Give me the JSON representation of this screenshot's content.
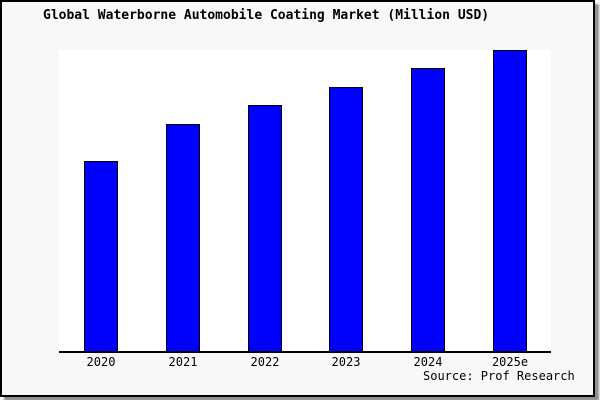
{
  "chart_data": {
    "type": "bar",
    "title": "Global Waterborne Automobile Coating Market (Million USD)",
    "categories": [
      "2020",
      "2021",
      "2022",
      "2023",
      "2024",
      "2025e"
    ],
    "values": [
      63,
      75.3,
      81.7,
      87.7,
      94,
      100
    ],
    "value_note": "relative scale estimated from bar heights; no y-axis labels shown, max bar = 100",
    "units": "Million USD",
    "xlabel": "",
    "ylabel": "",
    "ylim": [
      0,
      100
    ],
    "grid": false,
    "legend": "none",
    "bar_color": "#0000ff",
    "bar_border_color": "#000000",
    "source_note": "Source: Prof Research"
  },
  "colors": {
    "card_background": "#f8f8f8",
    "plot_background": "#ffffff",
    "bar": "#0000ff",
    "axis": "#000000",
    "frame": "#000000",
    "shadow": "#8f8f8f"
  }
}
